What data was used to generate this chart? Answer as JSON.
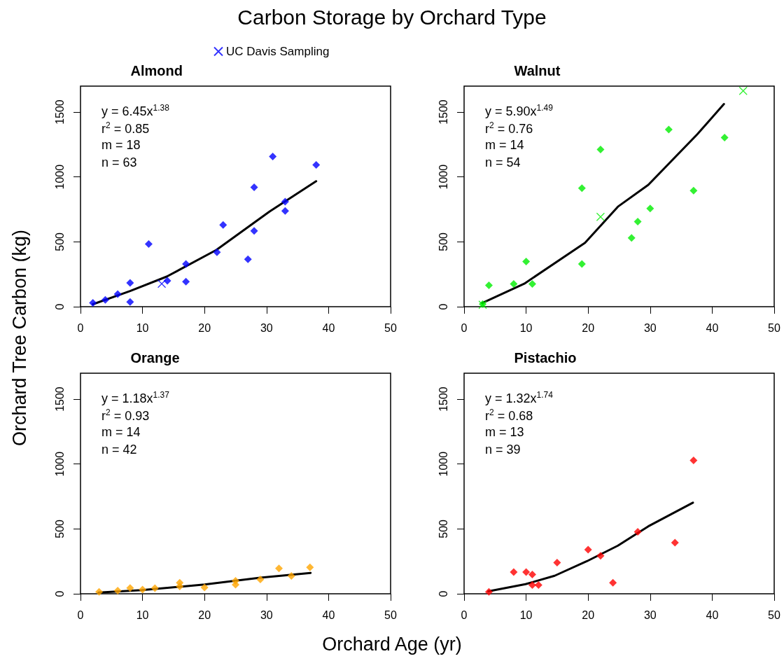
{
  "chart_data": [
    {
      "type": "scatter",
      "title": "Carbon Storage by Orchard Type",
      "subtitle": "Almond",
      "ylabel": "Orchard Tree Carbon (kg)",
      "legend": "top",
      "xlim": [
        0,
        50
      ],
      "xticks": [
        0,
        10,
        20,
        30,
        40,
        50
      ],
      "ylim": [
        0,
        1700
      ],
      "yticks": [
        0,
        500,
        1000,
        1500
      ],
      "grid": false,
      "annotations": [
        "y = 6.45x$^{1.38}$",
        "r$^{2}$ = 0.85",
        "m = 18",
        "n = 63"
      ],
      "series": [
        {
          "marker": "diamond",
          "color": "#0000ff",
          "x": [
            2,
            4,
            6,
            8,
            8,
            11,
            14,
            17,
            17,
            22,
            23,
            27,
            28,
            28,
            31,
            33,
            33,
            38
          ],
          "values": [
            30,
            52,
            97,
            184,
            37,
            483,
            200,
            329,
            193,
            420,
            630,
            366,
            920,
            584,
            1158,
            809,
            738,
            1093
          ]
        },
        {
          "name": "UC Davis Sampling",
          "marker": "cross",
          "color": "#0000ff",
          "x": [
            13.1
          ],
          "values": [
            177
          ]
        },
        {
          "type": "line",
          "marker": "none",
          "color": "#000000",
          "x": [
            2,
            8,
            13.9,
            21.9,
            27.8,
            30.5,
            38
          ],
          "values": [
            19,
            121,
            232,
            437,
            641,
            734,
            967
          ]
        }
      ]
    },
    {
      "type": "scatter",
      "title": "Walnut",
      "xlim": [
        0,
        50
      ],
      "xticks": [
        0,
        10,
        20,
        30,
        40,
        50
      ],
      "ylim": [
        0,
        1700
      ],
      "yticks": [
        0,
        500,
        1000,
        1500
      ],
      "grid": false,
      "annotations": [
        "y = 5.90x$^{1.49}$",
        "r$^{2}$ = 0.76",
        "m = 14",
        "n = 54"
      ],
      "series": [
        {
          "marker": "diamond",
          "color": "#00ee00",
          "x": [
            3,
            4,
            8,
            10,
            11,
            19,
            19,
            22,
            27,
            28,
            30,
            33,
            37,
            42
          ],
          "values": [
            20,
            165,
            175,
            348,
            175,
            913,
            329,
            1212,
            530,
            656,
            757,
            1366,
            894,
            1303
          ]
        },
        {
          "marker": "cross",
          "color": "#00ee00",
          "x": [
            3,
            22,
            45
          ],
          "values": [
            15,
            692,
            1664
          ]
        },
        {
          "type": "line",
          "marker": "none",
          "color": "#000000",
          "x": [
            2.9,
            9.7,
            19.5,
            24.8,
            29.7,
            37.6,
            41.9
          ],
          "values": [
            28,
            177,
            493,
            771,
            939,
            1329,
            1562
          ]
        }
      ]
    },
    {
      "type": "scatter",
      "title": "Orange",
      "xlabel": "Orchard Age (yr)",
      "xlim": [
        0,
        50
      ],
      "xticks": [
        0,
        10,
        20,
        30,
        40,
        50
      ],
      "ylim": [
        0,
        1700
      ],
      "yticks": [
        0,
        500,
        1000,
        1500
      ],
      "grid": false,
      "annotations": [
        "y = 1.18x$^{1.37}$",
        "r$^{2}$ = 0.93",
        "m = 14",
        "n = 42"
      ],
      "series": [
        {
          "marker": "diamond",
          "color": "#ffa500",
          "x": [
            3,
            6,
            8,
            10,
            12,
            16,
            16,
            20,
            25,
            25,
            29,
            32,
            34,
            37
          ],
          "values": [
            15,
            24,
            45,
            32,
            43,
            85,
            56,
            48,
            100,
            70,
            111,
            195,
            137,
            204
          ]
        },
        {
          "type": "line",
          "marker": "none",
          "color": "#000000",
          "x": [
            2.9,
            9.9,
            20,
            29,
            37.1
          ],
          "values": [
            9,
            28,
            71,
            124,
            161
          ]
        }
      ]
    },
    {
      "type": "scatter",
      "title": "Pistachio",
      "xlim": [
        0,
        50
      ],
      "xticks": [
        0,
        10,
        20,
        30,
        40,
        50
      ],
      "ylim": [
        0,
        1700
      ],
      "yticks": [
        0,
        500,
        1000,
        1500
      ],
      "grid": false,
      "annotations": [
        "y = 1.32x$^{1.74}$",
        "r$^{2}$ = 0.68",
        "m = 13",
        "n = 39"
      ],
      "series": [
        {
          "marker": "diamond",
          "color": "#ff0000",
          "x": [
            4,
            8,
            10,
            11,
            11,
            12,
            15,
            20,
            22,
            24,
            28,
            34,
            37
          ],
          "values": [
            15,
            167,
            167,
            149,
            67,
            67,
            240,
            340,
            293,
            85,
            477,
            394,
            1028
          ]
        },
        {
          "type": "line",
          "marker": "none",
          "color": "#000000",
          "x": [
            3.9,
            9.9,
            14.6,
            19.8,
            24.8,
            29.7,
            36.9
          ],
          "values": [
            19,
            74,
            139,
            251,
            371,
            520,
            702
          ]
        }
      ]
    }
  ]
}
